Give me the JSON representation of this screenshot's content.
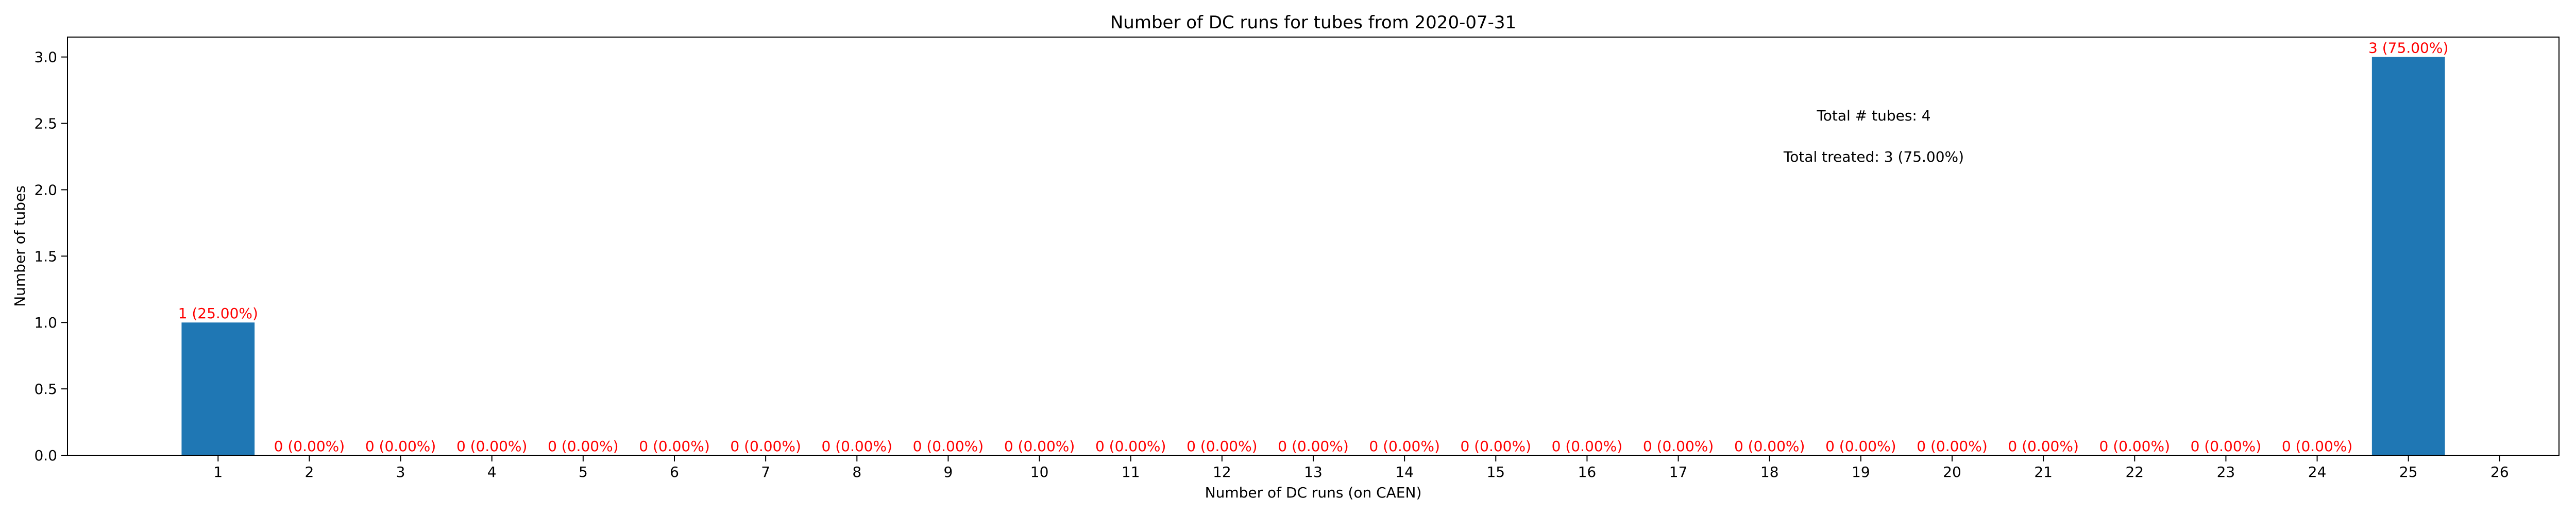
{
  "chart_data": {
    "type": "bar",
    "title": "Number of DC runs for tubes from 2020-07-31",
    "xlabel": "Number of DC runs (on CAEN)",
    "ylabel": "Number of tubes",
    "x_ticks": [
      "1",
      "2",
      "3",
      "4",
      "5",
      "6",
      "7",
      "8",
      "9",
      "10",
      "11",
      "12",
      "13",
      "14",
      "15",
      "16",
      "17",
      "18",
      "19",
      "20",
      "21",
      "22",
      "23",
      "24",
      "25",
      "26"
    ],
    "categories": [
      1,
      2,
      3,
      4,
      5,
      6,
      7,
      8,
      9,
      10,
      11,
      12,
      13,
      14,
      15,
      16,
      17,
      18,
      19,
      20,
      21,
      22,
      23,
      24,
      25
    ],
    "values": [
      1,
      0,
      0,
      0,
      0,
      0,
      0,
      0,
      0,
      0,
      0,
      0,
      0,
      0,
      0,
      0,
      0,
      0,
      0,
      0,
      0,
      0,
      0,
      0,
      3
    ],
    "data_labels": [
      "1 (25.00%)",
      "0 (0.00%)",
      "0 (0.00%)",
      "0 (0.00%)",
      "0 (0.00%)",
      "0 (0.00%)",
      "0 (0.00%)",
      "0 (0.00%)",
      "0 (0.00%)",
      "0 (0.00%)",
      "0 (0.00%)",
      "0 (0.00%)",
      "0 (0.00%)",
      "0 (0.00%)",
      "0 (0.00%)",
      "0 (0.00%)",
      "0 (0.00%)",
      "0 (0.00%)",
      "0 (0.00%)",
      "0 (0.00%)",
      "0 (0.00%)",
      "0 (0.00%)",
      "0 (0.00%)",
      "0 (0.00%)",
      "3 (75.00%)"
    ],
    "y_ticks": [
      "0.0",
      "0.5",
      "1.0",
      "1.5",
      "2.0",
      "2.5",
      "3.0"
    ],
    "xlim": [
      -0.65,
      26.65
    ],
    "ylim": [
      0,
      3.15
    ],
    "annotations": [
      "Total # tubes: 4",
      "Total treated: 3 (75.00%)"
    ],
    "grid": false,
    "bar_color": "#1f77b4",
    "label_color": "#ff0000"
  }
}
